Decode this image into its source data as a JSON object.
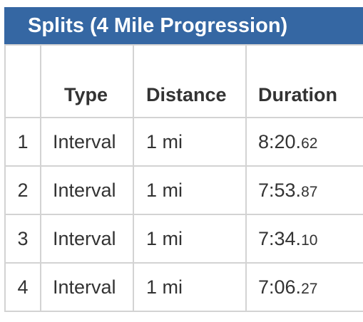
{
  "panel": {
    "title": "Splits (4 Mile Progression)",
    "title_bar_color": "#3567a3"
  },
  "table": {
    "columns": [
      "",
      "Type",
      "Distance",
      "Duration"
    ],
    "rows": [
      {
        "index": "1",
        "type": "Interval",
        "distance": "1 mi",
        "duration_main": "8:20.",
        "duration_fraction": "62"
      },
      {
        "index": "2",
        "type": "Interval",
        "distance": "1 mi",
        "duration_main": "7:53.",
        "duration_fraction": "87"
      },
      {
        "index": "3",
        "type": "Interval",
        "distance": "1 mi",
        "duration_main": "7:34.",
        "duration_fraction": "10"
      },
      {
        "index": "4",
        "type": "Interval",
        "distance": "1 mi",
        "duration_main": "7:06.",
        "duration_fraction": "27"
      }
    ]
  }
}
